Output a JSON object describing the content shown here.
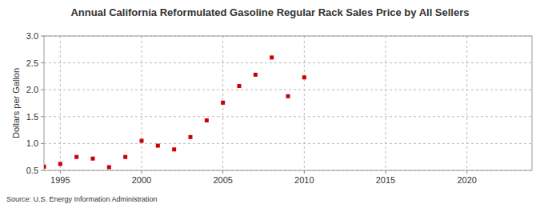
{
  "chart_data": {
    "type": "scatter",
    "title": "Annual California Reformulated Gasoline Regular Rack Sales Price by All Sellers",
    "y_label": "Dollars per Gallon",
    "source": "Source: U.S. Energy Information Administration",
    "x": [
      1994,
      1995,
      1996,
      1997,
      1998,
      1999,
      2000,
      2001,
      2002,
      2003,
      2004,
      2005,
      2006,
      2007,
      2008,
      2009,
      2010
    ],
    "values": [
      0.57,
      0.62,
      0.75,
      0.72,
      0.56,
      0.75,
      1.05,
      0.96,
      0.89,
      1.12,
      1.43,
      1.76,
      2.07,
      2.28,
      2.6,
      1.88,
      2.23
    ],
    "color": "#cc0000",
    "marker": "square",
    "xlim": [
      1994,
      2024
    ],
    "xticks": [
      1995,
      2000,
      2005,
      2010,
      2015,
      2020
    ],
    "ylim": [
      0.5,
      3.0
    ],
    "yticks": [
      {
        "value": 0.5,
        "label": "0.5"
      },
      {
        "value": 1.0,
        "label": "1.0"
      },
      {
        "value": 1.5,
        "label": "1.5"
      },
      {
        "value": 2.0,
        "label": "2.0"
      },
      {
        "value": 2.5,
        "label": "2.5"
      },
      {
        "value": 3.0,
        "label": "3.0"
      }
    ],
    "grid": true
  }
}
